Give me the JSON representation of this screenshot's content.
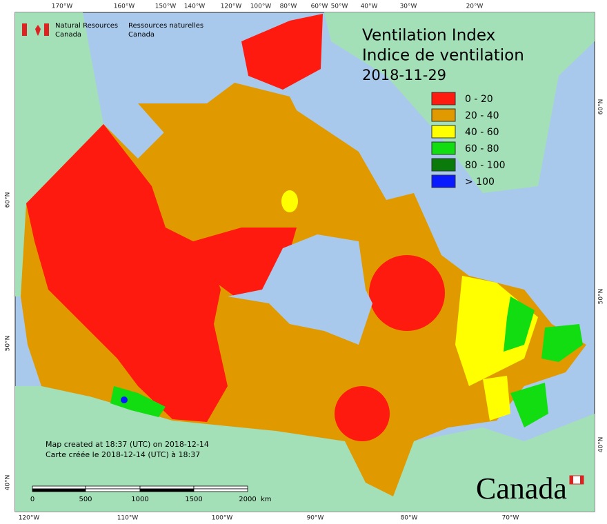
{
  "header": {
    "title_en": "Ventilation Index",
    "title_fr": "Indice de ventilation",
    "date": "2018-11-29"
  },
  "agency": {
    "en_line1": "Natural Resources",
    "en_line2": "Canada",
    "fr_line1": "Ressources naturelles",
    "fr_line2": "Canada"
  },
  "legend": [
    {
      "label": "0 - 20",
      "color": "#ff1a0f"
    },
    {
      "label": "20 - 40",
      "color": "#e09a00"
    },
    {
      "label": "40 - 60",
      "color": "#ffff00"
    },
    {
      "label": "60 - 80",
      "color": "#11dd11"
    },
    {
      "label": "80 - 100",
      "color": "#0a7a0a"
    },
    {
      "label": "> 100",
      "color": "#0a1aff"
    }
  ],
  "credits": [
    "Map created at 18:37 (UTC) on 2018-12-14",
    "Carte créée le 2018-12-14 (UTC) à 18:37"
  ],
  "scale_bar": {
    "labels": [
      "0",
      "500",
      "1000",
      "1500",
      "2000"
    ],
    "unit": "km"
  },
  "graticule": {
    "top": [
      "170°W",
      "160°W",
      "150°W",
      "140°W",
      "120°W",
      "100°W",
      "80°W",
      "60°W",
      "50°W",
      "40°W",
      "30°W",
      "20°W"
    ],
    "bottom": [
      "120°W",
      "110°W",
      "100°W",
      "90°W",
      "80°W",
      "70°W"
    ],
    "left": [
      "60°N",
      "50°N",
      "40°N"
    ],
    "right": [
      "60°N",
      "50°N",
      "40°N"
    ]
  },
  "wordmark": "Canada"
}
